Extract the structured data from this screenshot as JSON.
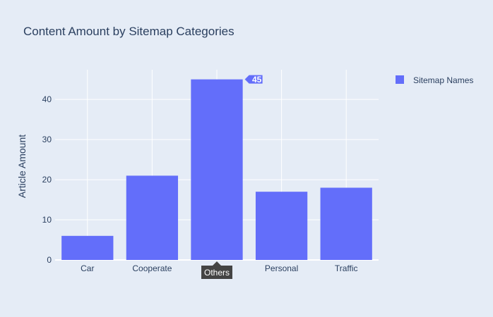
{
  "colors": {
    "background": "#e5ecf6",
    "plot_background": "#e5ecf6",
    "grid": "#ffffff",
    "bar": "#636efa",
    "text": "#2a3f5f",
    "tick_text": "#2a3f5f",
    "icon": "#b9bcc4",
    "icon_active": "#6b6f79",
    "hover_label_bg": "#444444"
  },
  "modebar": {
    "icons": [
      "camera-icon",
      "zoom-icon",
      "pan-icon",
      "box-select-icon",
      "lasso-select-icon",
      "zoom-in-icon",
      "zoom-out-icon",
      "autoscale-icon",
      "reset-axes-icon",
      "spike-lines-icon",
      "hover-closest-icon",
      "hover-compare-icon",
      "plotly-logo-icon"
    ],
    "active": "zoom-icon"
  },
  "hover": {
    "value_label": "45",
    "category_label": "Others"
  },
  "chart_data": {
    "type": "bar",
    "title": "Content Amount by Sitemap Categories",
    "xlabel": "",
    "ylabel": "Article Amount",
    "categories": [
      "Car",
      "Cooperate",
      "Others",
      "Personal",
      "Traffic"
    ],
    "series": [
      {
        "name": "Sitemap Names",
        "values": [
          6,
          21,
          45,
          17,
          18
        ]
      }
    ],
    "ylim": [
      0,
      47.4
    ],
    "yticks": [
      0,
      10,
      20,
      30,
      40
    ],
    "grid": true,
    "legend": "top-right"
  }
}
